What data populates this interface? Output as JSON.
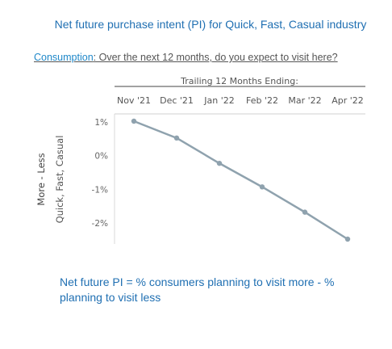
{
  "header": {
    "title": "Net future purchase intent (PI) for Quick, Fast, Casual industry",
    "question_link": "Consumption",
    "question_text": ": Over the next 12 months, do you expect to visit here?"
  },
  "footnote": "Net future PI = % consumers planning to visit more - % planning to visit less",
  "chart_data": {
    "type": "line",
    "title": "Trailing 12 Months Ending:",
    "categories": [
      "Nov '21",
      "Dec '21",
      "Jan '22",
      "Feb '22",
      "Mar '22",
      "Apr '22"
    ],
    "series": [
      {
        "values": [
          1.0,
          0.5,
          -0.25,
          -0.95,
          -1.7,
          -2.5
        ]
      }
    ],
    "ylabel_outer": "More - Less",
    "ylabel_inner": "Quick, Fast, Casual",
    "y_ticks": [
      1,
      0,
      -1,
      -2
    ],
    "y_tick_labels": [
      "1%",
      "0%",
      "-1%",
      "-2%"
    ],
    "ylim": [
      -2.7,
      1.2
    ],
    "grid": false,
    "line_color": "#8fa2ae"
  }
}
